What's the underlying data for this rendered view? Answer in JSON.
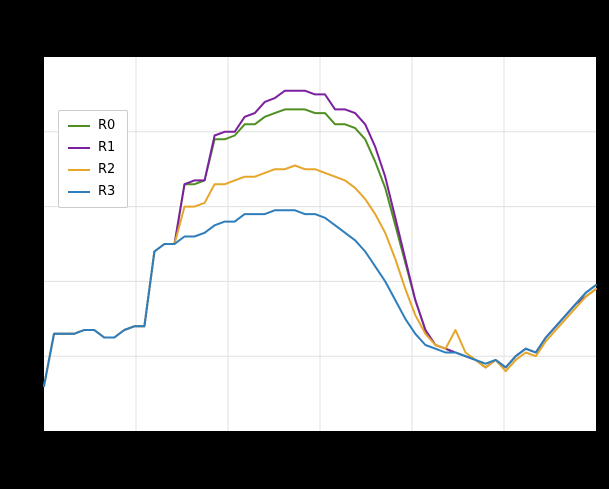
{
  "figure": {
    "background_color": "#000000",
    "plot_background_color": "#ffffff",
    "grid_color": "#e0e0e0"
  },
  "legend": {
    "position": "upper-left",
    "entries": [
      "R0",
      "R1",
      "R2",
      "R3"
    ]
  },
  "chart_data": {
    "type": "line",
    "title": "",
    "xlabel": "",
    "ylabel": "",
    "xlim": [
      0,
      55
    ],
    "ylim": [
      0,
      100
    ],
    "grid": true,
    "legend_position": "upper-left",
    "x_note": "x values are evenly spaced sample indices 0..55 (no tick labels visible in image)",
    "series": [
      {
        "name": "R0",
        "color": "#4f8f21",
        "values": [
          12,
          26,
          26,
          26,
          27,
          27,
          25,
          25,
          27,
          28,
          28,
          48,
          50,
          50,
          66,
          66,
          67,
          78,
          78,
          79,
          82,
          82,
          84,
          85,
          86,
          86,
          86,
          85,
          85,
          82,
          82,
          81,
          78,
          72,
          65,
          55,
          45,
          35,
          27,
          23,
          22,
          21,
          20,
          19,
          17,
          19,
          17,
          20,
          22,
          21,
          25,
          28,
          31,
          34,
          37,
          39
        ]
      },
      {
        "name": "R1",
        "color": "#7b219f",
        "values": [
          12,
          26,
          26,
          26,
          27,
          27,
          25,
          25,
          27,
          28,
          28,
          48,
          50,
          50,
          66,
          67,
          67,
          79,
          80,
          80,
          84,
          85,
          88,
          89,
          91,
          91,
          91,
          90,
          90,
          86,
          86,
          85,
          82,
          76,
          68,
          57,
          46,
          35,
          27,
          23,
          22,
          21,
          20,
          19,
          17,
          19,
          17,
          20,
          22,
          21,
          25,
          28,
          31,
          34,
          36,
          38
        ]
      },
      {
        "name": "R2",
        "color": "#e6a62b",
        "values": [
          12,
          26,
          26,
          26,
          27,
          27,
          25,
          25,
          27,
          28,
          28,
          48,
          50,
          50,
          60,
          60,
          61,
          66,
          66,
          67,
          68,
          68,
          69,
          70,
          70,
          71,
          70,
          70,
          69,
          68,
          67,
          65,
          62,
          58,
          53,
          46,
          38,
          31,
          26,
          23,
          22,
          27,
          21,
          19,
          17,
          19,
          16,
          19,
          21,
          20,
          24,
          27,
          30,
          33,
          36,
          38
        ]
      },
      {
        "name": "R3",
        "color": "#2e7ebc",
        "values": [
          12,
          26,
          26,
          26,
          27,
          27,
          25,
          25,
          27,
          28,
          28,
          48,
          50,
          50,
          52,
          52,
          53,
          55,
          56,
          56,
          58,
          58,
          58,
          59,
          59,
          59,
          58,
          58,
          57,
          55,
          53,
          51,
          48,
          44,
          40,
          35,
          30,
          26,
          23,
          22,
          21,
          21,
          20,
          19,
          18,
          19,
          17,
          20,
          22,
          21,
          25,
          28,
          31,
          34,
          37,
          39
        ]
      }
    ]
  }
}
